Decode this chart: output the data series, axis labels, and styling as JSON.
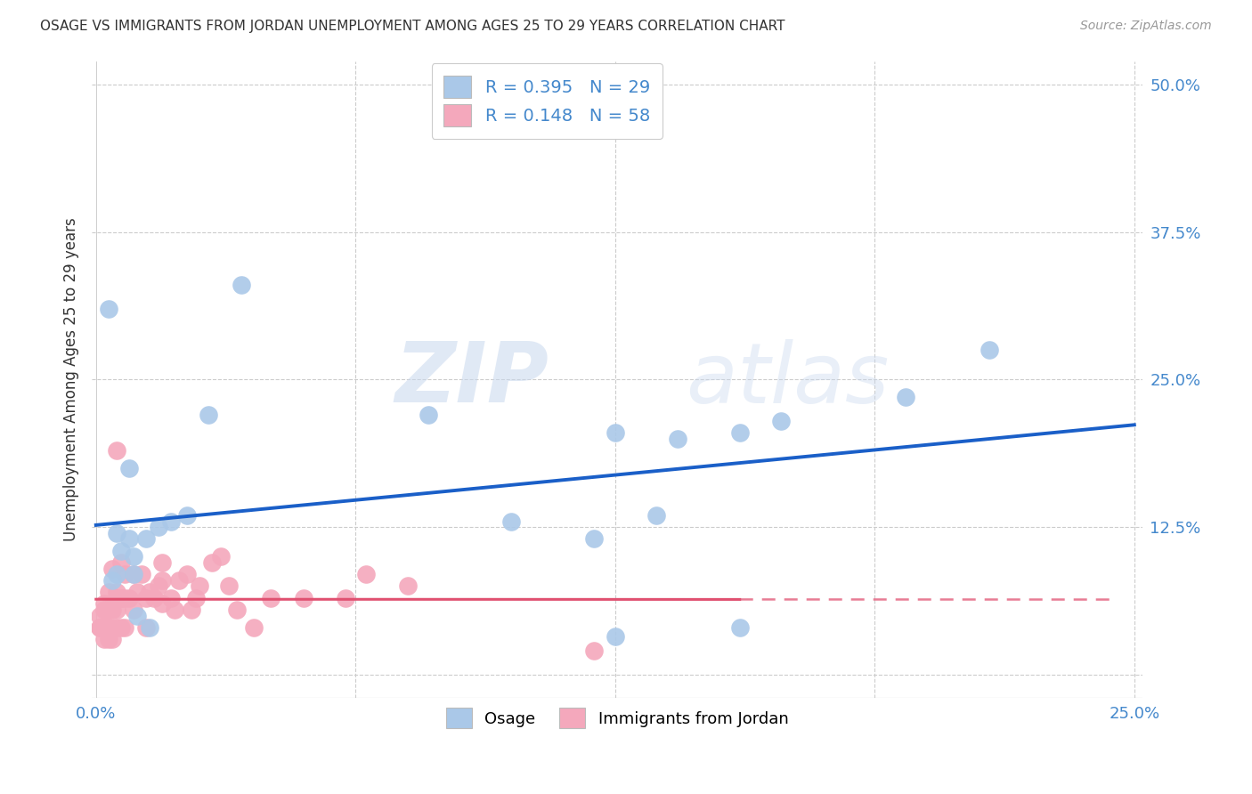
{
  "title": "OSAGE VS IMMIGRANTS FROM JORDAN UNEMPLOYMENT AMONG AGES 25 TO 29 YEARS CORRELATION CHART",
  "source": "Source: ZipAtlas.com",
  "ylabel": "Unemployment Among Ages 25 to 29 years",
  "x_ticks": [
    0.0,
    0.0625,
    0.125,
    0.1875,
    0.25
  ],
  "x_tick_labels": [
    "0.0%",
    "",
    "",
    "",
    "25.0%"
  ],
  "y_ticks": [
    0.0,
    0.125,
    0.25,
    0.375,
    0.5
  ],
  "y_tick_labels": [
    "",
    "12.5%",
    "25.0%",
    "37.5%",
    "50.0%"
  ],
  "xlim": [
    -0.001,
    0.252
  ],
  "ylim": [
    -0.02,
    0.52
  ],
  "osage_color": "#aac8e8",
  "jordan_color": "#f4a8bc",
  "osage_line_color": "#1a5fc8",
  "jordan_line_color": "#e05070",
  "legend_r_osage": "0.395",
  "legend_n_osage": "29",
  "legend_r_jordan": "0.148",
  "legend_n_jordan": "58",
  "osage_x": [
    0.005,
    0.008,
    0.01,
    0.013,
    0.005,
    0.003,
    0.006,
    0.004,
    0.009,
    0.009,
    0.012,
    0.008,
    0.015,
    0.018,
    0.022,
    0.027,
    0.035,
    0.08,
    0.1,
    0.12,
    0.125,
    0.135,
    0.14,
    0.155,
    0.165,
    0.195,
    0.215,
    0.125,
    0.155
  ],
  "osage_y": [
    0.085,
    0.175,
    0.05,
    0.04,
    0.12,
    0.31,
    0.105,
    0.08,
    0.085,
    0.1,
    0.115,
    0.115,
    0.125,
    0.13,
    0.135,
    0.22,
    0.33,
    0.22,
    0.13,
    0.115,
    0.205,
    0.135,
    0.2,
    0.205,
    0.215,
    0.235,
    0.275,
    0.032,
    0.04
  ],
  "jordan_x": [
    0.001,
    0.001,
    0.001,
    0.002,
    0.002,
    0.002,
    0.002,
    0.003,
    0.003,
    0.003,
    0.003,
    0.003,
    0.004,
    0.004,
    0.004,
    0.004,
    0.005,
    0.005,
    0.005,
    0.005,
    0.005,
    0.006,
    0.006,
    0.006,
    0.007,
    0.007,
    0.007,
    0.008,
    0.009,
    0.009,
    0.01,
    0.011,
    0.012,
    0.012,
    0.013,
    0.014,
    0.015,
    0.016,
    0.016,
    0.016,
    0.018,
    0.019,
    0.02,
    0.022,
    0.023,
    0.024,
    0.025,
    0.028,
    0.03,
    0.032,
    0.034,
    0.038,
    0.042,
    0.05,
    0.06,
    0.065,
    0.075,
    0.12
  ],
  "jordan_y": [
    0.05,
    0.04,
    0.04,
    0.055,
    0.04,
    0.06,
    0.03,
    0.055,
    0.04,
    0.03,
    0.04,
    0.07,
    0.09,
    0.055,
    0.04,
    0.03,
    0.19,
    0.07,
    0.065,
    0.055,
    0.04,
    0.095,
    0.065,
    0.04,
    0.085,
    0.065,
    0.04,
    0.065,
    0.085,
    0.055,
    0.07,
    0.085,
    0.065,
    0.04,
    0.07,
    0.065,
    0.075,
    0.095,
    0.08,
    0.06,
    0.065,
    0.055,
    0.08,
    0.085,
    0.055,
    0.065,
    0.075,
    0.095,
    0.1,
    0.075,
    0.055,
    0.04,
    0.065,
    0.065,
    0.065,
    0.085,
    0.075,
    0.02
  ],
  "watermark_zip": "ZIP",
  "watermark_atlas": "atlas",
  "background_color": "#ffffff",
  "grid_color": "#cccccc",
  "jordan_line_x_max": 0.155
}
